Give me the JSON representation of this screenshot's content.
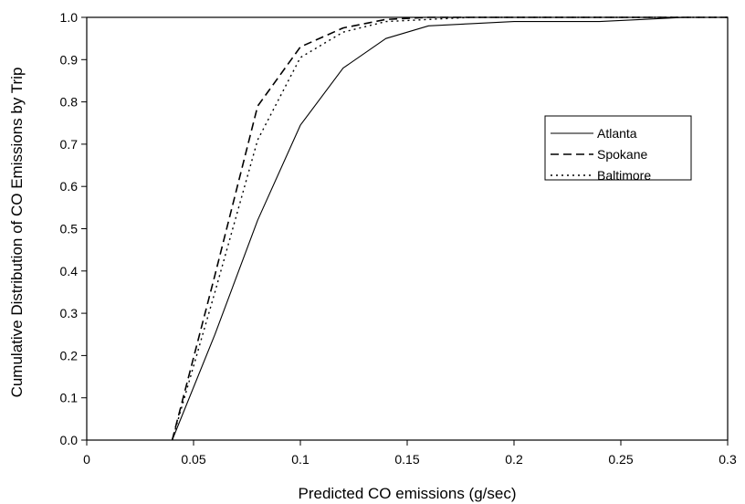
{
  "chart_data": {
    "type": "line",
    "title": "",
    "xlabel": "Predicted CO emissions (g/sec)",
    "ylabel": "Cumulative Distribution of CO Emissions by Trip",
    "xlim": [
      0,
      0.3
    ],
    "ylim": [
      0,
      1.0
    ],
    "xticks": [
      "0",
      "0.05",
      "0.1",
      "0.15",
      "0.2",
      "0.25",
      "0.3"
    ],
    "yticks": [
      "0.0",
      "0.1",
      "0.2",
      "0.3",
      "0.4",
      "0.5",
      "0.6",
      "0.7",
      "0.8",
      "0.9",
      "1.0"
    ],
    "grid": false,
    "legend_position": "right",
    "series": [
      {
        "name": "Atlanta",
        "style": "solid",
        "x": [
          0.04,
          0.06,
          0.08,
          0.1,
          0.12,
          0.14,
          0.16,
          0.18,
          0.2,
          0.22,
          0.24,
          0.26,
          0.28,
          0.3
        ],
        "y": [
          0.0,
          0.25,
          0.52,
          0.745,
          0.88,
          0.95,
          0.98,
          0.985,
          0.99,
          0.99,
          0.99,
          0.995,
          1.0,
          1.0
        ]
      },
      {
        "name": "Spokane",
        "style": "dashed",
        "x": [
          0.04,
          0.06,
          0.08,
          0.1,
          0.12,
          0.14,
          0.16,
          0.18,
          0.2,
          0.25,
          0.3
        ],
        "y": [
          0.0,
          0.39,
          0.79,
          0.93,
          0.975,
          0.995,
          1.0,
          1.0,
          1.0,
          1.0,
          1.0
        ]
      },
      {
        "name": "Baltimore",
        "style": "dotted",
        "x": [
          0.04,
          0.06,
          0.08,
          0.1,
          0.12,
          0.14,
          0.16,
          0.18,
          0.2,
          0.25,
          0.3
        ],
        "y": [
          0.0,
          0.35,
          0.71,
          0.905,
          0.965,
          0.99,
          0.995,
          1.0,
          1.0,
          1.0,
          1.0
        ]
      }
    ]
  }
}
